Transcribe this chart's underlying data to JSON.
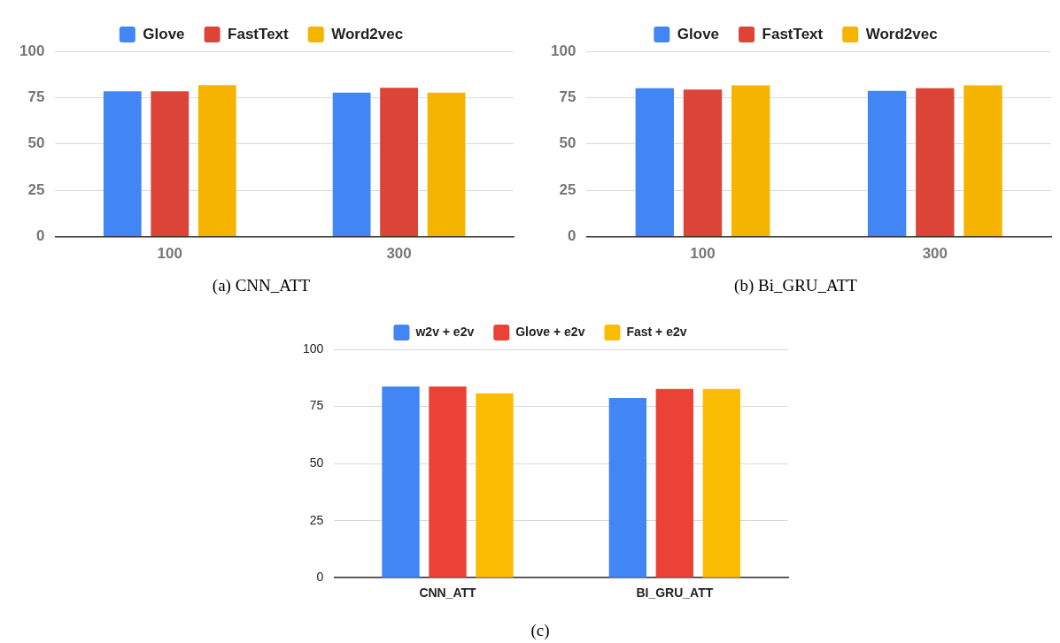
{
  "chart_data": [
    {
      "type": "bar",
      "categories": [
        "100",
        "300"
      ],
      "series": [
        {
          "name": "Glove",
          "color": "#4285f4",
          "values": [
            78.4,
            77.7
          ]
        },
        {
          "name": "FastText",
          "color": "#db4437",
          "values": [
            78.4,
            80.3
          ]
        },
        {
          "name": "Word2vec",
          "color": "#f4b400",
          "values": [
            81.7,
            77.7
          ]
        }
      ],
      "ylim": [
        0,
        100
      ],
      "yticks": [
        0,
        25,
        50,
        75,
        100
      ],
      "grid": "y",
      "legend": "top",
      "annotations": [
        "(a) CNN_ATT"
      ]
    },
    {
      "type": "bar",
      "categories": [
        "100",
        "300"
      ],
      "series": [
        {
          "name": "Glove",
          "color": "#4285f4",
          "values": [
            80.1,
            78.6
          ]
        },
        {
          "name": "FastText",
          "color": "#db4437",
          "values": [
            79.4,
            80.1
          ]
        },
        {
          "name": "Word2vec",
          "color": "#f4b400",
          "values": [
            81.6,
            81.6
          ]
        }
      ],
      "ylim": [
        0,
        100
      ],
      "yticks": [
        0,
        25,
        50,
        75,
        100
      ],
      "grid": "y",
      "legend": "top",
      "annotations": [
        "(b) Bi_GRU_ATT"
      ]
    },
    {
      "type": "bar",
      "categories": [
        "CNN_ATT",
        "BI_GRU_ATT"
      ],
      "series": [
        {
          "name": "w2v + e2v",
          "color": "#4285f4",
          "values": [
            83.7,
            78.7
          ]
        },
        {
          "name": "Glove + e2v",
          "color": "#ea4335",
          "values": [
            83.7,
            82.7
          ]
        },
        {
          "name": "Fast + e2v",
          "color": "#fbbc04",
          "values": [
            80.7,
            82.7
          ]
        }
      ],
      "ylim": [
        0,
        100
      ],
      "yticks": [
        0,
        25,
        50,
        75,
        100
      ],
      "grid": "y",
      "legend": "top",
      "annotations": [
        "(c)"
      ]
    }
  ]
}
